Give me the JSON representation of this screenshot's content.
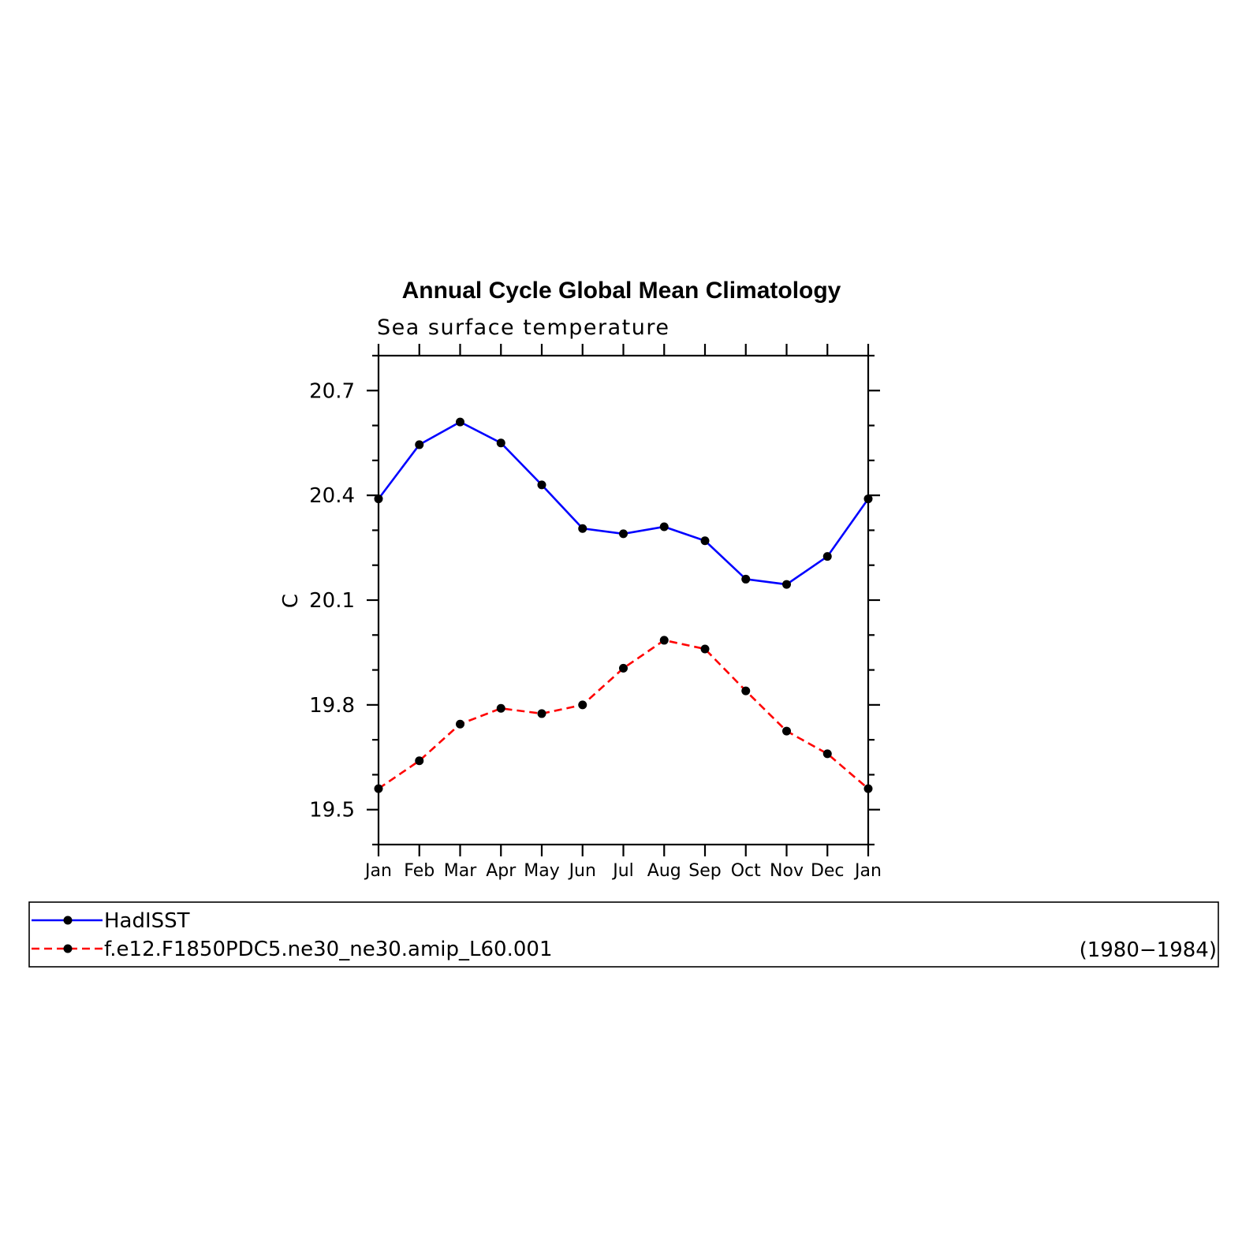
{
  "chart_data": {
    "type": "line",
    "title": "Annual Cycle Global Mean Climatology",
    "subtitle": "Sea surface temperature",
    "xlabel": "",
    "ylabel": "C",
    "categories": [
      "Jan",
      "Feb",
      "Mar",
      "Apr",
      "May",
      "Jun",
      "Jul",
      "Aug",
      "Sep",
      "Oct",
      "Nov",
      "Dec",
      "Jan"
    ],
    "yticks": [
      "19.5",
      "19.8",
      "20.1",
      "20.4",
      "20.7"
    ],
    "ylim": [
      19.4,
      20.8
    ],
    "grid": false,
    "legend_position": "bottom",
    "legend_note": "(1980−1984)",
    "series": [
      {
        "name": "HadISST",
        "color": "#0000ff",
        "dash": "solid",
        "values": [
          20.39,
          20.545,
          20.61,
          20.55,
          20.43,
          20.305,
          20.29,
          20.31,
          20.27,
          20.16,
          20.145,
          20.225,
          20.39
        ]
      },
      {
        "name": "f.e12.F1850PDC5.ne30_ne30.amip_L60.001",
        "color": "#ff0000",
        "dash": "dashed",
        "values": [
          19.56,
          19.64,
          19.745,
          19.79,
          19.775,
          19.8,
          19.905,
          19.985,
          19.96,
          19.84,
          19.725,
          19.66,
          19.56
        ]
      }
    ]
  }
}
